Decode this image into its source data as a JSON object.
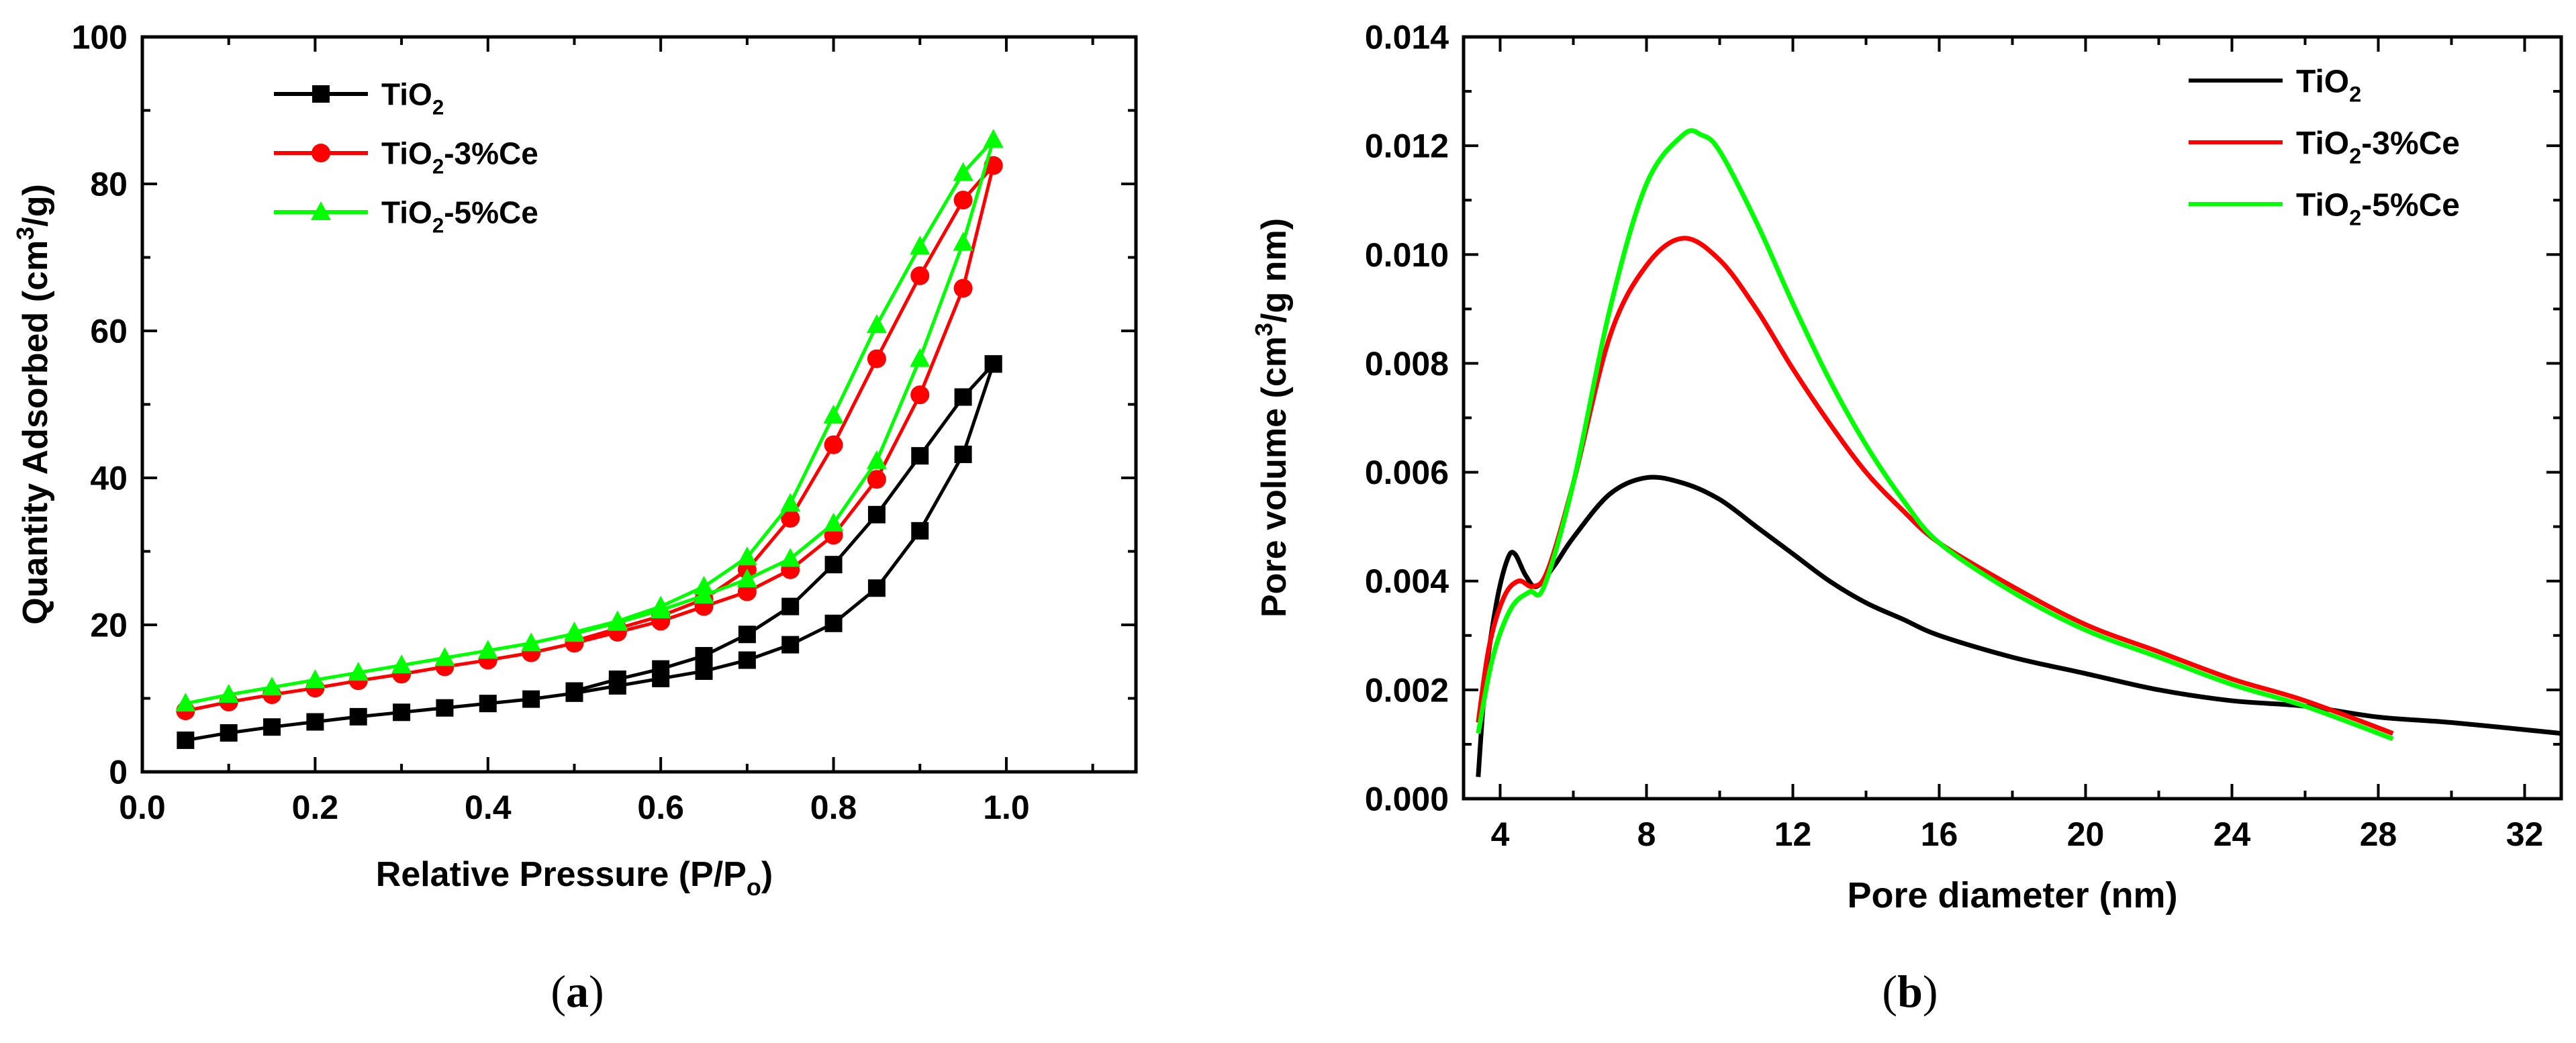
{
  "chart_data": [
    {
      "type": "line",
      "panel_label": "(a)",
      "panel_letter": "a",
      "xlabel": "Relative Pressure (P/P",
      "xlabel_sub": "o",
      "xlabel_end": ")",
      "ylabel_pre": "Quantity Adsorbed (cm",
      "ylabel_sup": "3",
      "ylabel_post": "/g)",
      "xlim": [
        0.0,
        1.15
      ],
      "ylim": [
        0,
        100
      ],
      "xticks": [
        "0.0",
        "0.2",
        "0.4",
        "0.6",
        "0.8",
        "1.0"
      ],
      "xtick_values": [
        0.0,
        0.2,
        0.4,
        0.6,
        0.8,
        1.0
      ],
      "yticks": [
        "0",
        "20",
        "40",
        "60",
        "80",
        "100"
      ],
      "ytick_values": [
        0,
        20,
        40,
        60,
        80,
        100
      ],
      "legend_position": "top-left",
      "series": [
        {
          "name": "TiO2",
          "label_main": "TiO",
          "label_sub": "2",
          "label_rest": "",
          "color": "#000000",
          "marker": "square",
          "adsorption": [
            [
              0.05,
              4.3
            ],
            [
              0.1,
              5.3
            ],
            [
              0.15,
              6.1
            ],
            [
              0.2,
              6.8
            ],
            [
              0.25,
              7.5
            ],
            [
              0.3,
              8.1
            ],
            [
              0.35,
              8.7
            ],
            [
              0.4,
              9.3
            ],
            [
              0.45,
              9.9
            ],
            [
              0.5,
              10.7
            ],
            [
              0.55,
              11.7
            ],
            [
              0.6,
              12.7
            ],
            [
              0.65,
              13.7
            ],
            [
              0.7,
              15.2
            ],
            [
              0.75,
              17.3
            ],
            [
              0.8,
              20.2
            ],
            [
              0.85,
              25.0
            ],
            [
              0.9,
              32.8
            ],
            [
              0.95,
              43.2
            ],
            [
              0.985,
              55.5
            ]
          ],
          "desorption": [
            [
              0.985,
              55.5
            ],
            [
              0.95,
              51.0
            ],
            [
              0.9,
              43.0
            ],
            [
              0.85,
              35.0
            ],
            [
              0.8,
              28.2
            ],
            [
              0.75,
              22.5
            ],
            [
              0.7,
              18.7
            ],
            [
              0.65,
              15.8
            ],
            [
              0.6,
              14.0
            ],
            [
              0.55,
              12.6
            ],
            [
              0.5,
              11.0
            ]
          ]
        },
        {
          "name": "TiO2-3%Ce",
          "label_main": "TiO",
          "label_sub": "2",
          "label_rest": "-3%Ce",
          "color": "#ff0000",
          "marker": "circle",
          "adsorption": [
            [
              0.05,
              8.3
            ],
            [
              0.1,
              9.5
            ],
            [
              0.15,
              10.5
            ],
            [
              0.2,
              11.4
            ],
            [
              0.25,
              12.4
            ],
            [
              0.3,
              13.3
            ],
            [
              0.35,
              14.3
            ],
            [
              0.4,
              15.2
            ],
            [
              0.45,
              16.2
            ],
            [
              0.5,
              17.5
            ],
            [
              0.55,
              19.0
            ],
            [
              0.6,
              20.5
            ],
            [
              0.65,
              22.5
            ],
            [
              0.7,
              24.5
            ],
            [
              0.75,
              27.5
            ],
            [
              0.8,
              32.2
            ],
            [
              0.85,
              39.8
            ],
            [
              0.9,
              51.3
            ],
            [
              0.95,
              65.8
            ],
            [
              0.985,
              82.5
            ]
          ],
          "desorption": [
            [
              0.985,
              82.5
            ],
            [
              0.95,
              77.8
            ],
            [
              0.9,
              67.5
            ],
            [
              0.85,
              56.2
            ],
            [
              0.8,
              44.5
            ],
            [
              0.75,
              34.5
            ],
            [
              0.7,
              27.5
            ],
            [
              0.65,
              23.5
            ],
            [
              0.6,
              21.2
            ],
            [
              0.55,
              19.5
            ],
            [
              0.5,
              17.8
            ]
          ]
        },
        {
          "name": "TiO2-5%Ce",
          "label_main": "TiO",
          "label_sub": "2",
          "label_rest": "-5%Ce",
          "color": "#00ff00",
          "marker": "triangle",
          "adsorption": [
            [
              0.05,
              9.3
            ],
            [
              0.1,
              10.5
            ],
            [
              0.15,
              11.5
            ],
            [
              0.2,
              12.5
            ],
            [
              0.25,
              13.5
            ],
            [
              0.3,
              14.5
            ],
            [
              0.35,
              15.5
            ],
            [
              0.4,
              16.5
            ],
            [
              0.45,
              17.5
            ],
            [
              0.5,
              18.8
            ],
            [
              0.55,
              20.3
            ],
            [
              0.6,
              22.0
            ],
            [
              0.65,
              24.0
            ],
            [
              0.7,
              26.2
            ],
            [
              0.75,
              29.0
            ],
            [
              0.8,
              33.8
            ],
            [
              0.85,
              42.3
            ],
            [
              0.9,
              56.2
            ],
            [
              0.95,
              72.0
            ],
            [
              0.985,
              86.0
            ]
          ],
          "desorption": [
            [
              0.985,
              86.0
            ],
            [
              0.95,
              81.5
            ],
            [
              0.9,
              71.5
            ],
            [
              0.85,
              60.8
            ],
            [
              0.8,
              48.5
            ],
            [
              0.75,
              36.5
            ],
            [
              0.7,
              29.2
            ],
            [
              0.65,
              25.2
            ],
            [
              0.6,
              22.5
            ],
            [
              0.55,
              20.5
            ],
            [
              0.5,
              19.0
            ]
          ]
        }
      ]
    },
    {
      "type": "line",
      "panel_label": "(b)",
      "panel_letter": "b",
      "xlabel": "Pore diameter (nm)",
      "ylabel_pre": "Pore volume (cm",
      "ylabel_sup": "3",
      "ylabel_post": "/g nm)",
      "xlim": [
        3,
        33
      ],
      "ylim": [
        0,
        0.014
      ],
      "xticks": [
        "4",
        "8",
        "12",
        "16",
        "20",
        "24",
        "28",
        "32"
      ],
      "xtick_values": [
        4,
        8,
        12,
        16,
        20,
        24,
        28,
        32
      ],
      "yticks": [
        "0.000",
        "0.002",
        "0.004",
        "0.006",
        "0.008",
        "0.010",
        "0.012",
        "0.014"
      ],
      "ytick_values": [
        0,
        0.002,
        0.004,
        0.006,
        0.008,
        0.01,
        0.012,
        0.014
      ],
      "legend_position": "top-right",
      "series": [
        {
          "name": "TiO2",
          "label_main": "TiO",
          "label_sub": "2",
          "label_rest": "",
          "color": "#000000",
          "points": [
            [
              3.4,
              0.0004
            ],
            [
              3.6,
              0.0022
            ],
            [
              3.9,
              0.0036
            ],
            [
              4.2,
              0.0044
            ],
            [
              4.4,
              0.0045
            ],
            [
              4.7,
              0.0041
            ],
            [
              5.0,
              0.0039
            ],
            [
              5.5,
              0.0043
            ],
            [
              6,
              0.0048
            ],
            [
              7,
              0.0056
            ],
            [
              8,
              0.0059
            ],
            [
              9,
              0.0058
            ],
            [
              10,
              0.0055
            ],
            [
              11,
              0.005
            ],
            [
              12,
              0.0045
            ],
            [
              13,
              0.004
            ],
            [
              14,
              0.0036
            ],
            [
              15,
              0.0033
            ],
            [
              16,
              0.003
            ],
            [
              18,
              0.0026
            ],
            [
              20,
              0.0023
            ],
            [
              22,
              0.002
            ],
            [
              24,
              0.0018
            ],
            [
              26,
              0.0017
            ],
            [
              28,
              0.0015
            ],
            [
              30,
              0.0014
            ],
            [
              33,
              0.0012
            ]
          ]
        },
        {
          "name": "TiO2-3%Ce",
          "label_main": "TiO",
          "label_sub": "2",
          "label_rest": "-3%Ce",
          "color": "#ff0000",
          "points": [
            [
              3.4,
              0.0014
            ],
            [
              3.7,
              0.0028
            ],
            [
              4.1,
              0.0037
            ],
            [
              4.5,
              0.004
            ],
            [
              4.9,
              0.0039
            ],
            [
              5.3,
              0.0042
            ],
            [
              6,
              0.0058
            ],
            [
              7,
              0.0085
            ],
            [
              8,
              0.0098
            ],
            [
              9,
              0.0103
            ],
            [
              10,
              0.0099
            ],
            [
              11,
              0.009
            ],
            [
              12,
              0.0079
            ],
            [
              13,
              0.0069
            ],
            [
              14,
              0.006
            ],
            [
              15,
              0.0053
            ],
            [
              16,
              0.0047
            ],
            [
              18,
              0.0039
            ],
            [
              20,
              0.0032
            ],
            [
              22,
              0.0027
            ],
            [
              24,
              0.0022
            ],
            [
              26,
              0.0018
            ],
            [
              28.4,
              0.0012
            ]
          ]
        },
        {
          "name": "TiO2-5%Ce",
          "label_main": "TiO",
          "label_sub": "2",
          "label_rest": "-5%Ce",
          "color": "#00ff00",
          "points": [
            [
              3.4,
              0.0012
            ],
            [
              3.8,
              0.0026
            ],
            [
              4.3,
              0.0035
            ],
            [
              4.8,
              0.0038
            ],
            [
              5.2,
              0.0039
            ],
            [
              6,
              0.0058
            ],
            [
              7,
              0.009
            ],
            [
              8,
              0.0113
            ],
            [
              9,
              0.0122
            ],
            [
              9.5,
              0.0122
            ],
            [
              10,
              0.0119
            ],
            [
              11,
              0.0106
            ],
            [
              12,
              0.0091
            ],
            [
              13,
              0.0077
            ],
            [
              14,
              0.0065
            ],
            [
              15,
              0.0055
            ],
            [
              16,
              0.0047
            ],
            [
              18,
              0.0038
            ],
            [
              20,
              0.0031
            ],
            [
              22,
              0.0026
            ],
            [
              24,
              0.0021
            ],
            [
              26,
              0.0017
            ],
            [
              28.4,
              0.0011
            ]
          ]
        }
      ]
    }
  ]
}
